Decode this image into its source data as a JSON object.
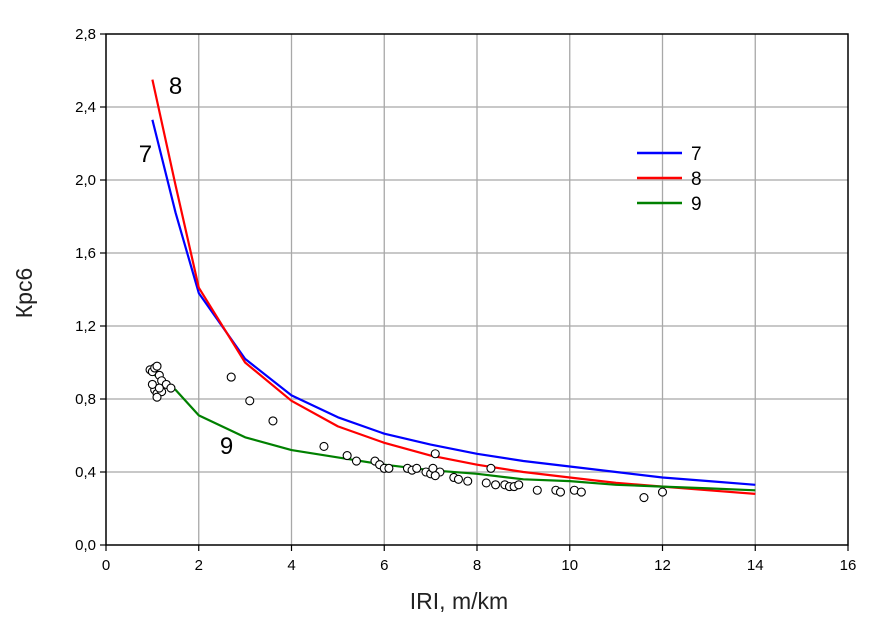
{
  "chart_data": {
    "type": "line",
    "title": "",
    "xlabel": "IRI, m/km",
    "ylabel": "Кpc6",
    "xlim": [
      0,
      16
    ],
    "ylim": [
      0,
      2.8
    ],
    "x_ticks": [
      0,
      2,
      4,
      6,
      8,
      10,
      12,
      14,
      16
    ],
    "x_tick_labels": [
      "0",
      "2",
      "4",
      "6",
      "8",
      "10",
      "12",
      "14",
      "16"
    ],
    "y_ticks": [
      0,
      0.4,
      0.8,
      1.2,
      1.6,
      2.0,
      2.4,
      2.8
    ],
    "y_tick_labels": [
      "0,0",
      "0,4",
      "0,8",
      "1,2",
      "1,6",
      "2,0",
      "2,4",
      "2,8"
    ],
    "grid": true,
    "legend_position": "upper-right",
    "series": [
      {
        "name": "7",
        "color": "#0000ff",
        "x": [
          1,
          1.5,
          2,
          3,
          4,
          5,
          6,
          7,
          8,
          9,
          10,
          11,
          12,
          13,
          14
        ],
        "y": [
          2.33,
          1.82,
          1.38,
          1.02,
          0.82,
          0.7,
          0.61,
          0.55,
          0.5,
          0.46,
          0.43,
          0.4,
          0.37,
          0.35,
          0.33
        ]
      },
      {
        "name": "8",
        "color": "#ff0000",
        "x": [
          1,
          1.5,
          2,
          3,
          4,
          5,
          6,
          7,
          8,
          9,
          10,
          11,
          12,
          13,
          14
        ],
        "y": [
          2.55,
          1.97,
          1.41,
          1.0,
          0.79,
          0.65,
          0.56,
          0.49,
          0.44,
          0.4,
          0.37,
          0.34,
          0.32,
          0.3,
          0.28
        ]
      },
      {
        "name": "9",
        "color": "#008000",
        "x": [
          1,
          1.5,
          2,
          3,
          4,
          5,
          6,
          7,
          8,
          9,
          10,
          11,
          12,
          13,
          14
        ],
        "y": [
          0.94,
          0.85,
          0.71,
          0.59,
          0.52,
          0.48,
          0.44,
          0.41,
          0.39,
          0.36,
          0.35,
          0.33,
          0.32,
          0.31,
          0.3
        ]
      }
    ],
    "scatter": {
      "x": [
        0.95,
        1.0,
        1.05,
        1.1,
        1.15,
        1.2,
        1.05,
        1.1,
        1.3,
        1.0,
        1.2,
        1.4,
        1.1,
        1.15,
        2.7,
        3.1,
        3.6,
        4.7,
        5.2,
        5.4,
        5.8,
        5.9,
        6.0,
        6.1,
        6.5,
        6.6,
        6.7,
        6.9,
        7.0,
        7.05,
        7.1,
        7.2,
        7.1,
        7.5,
        7.6,
        7.8,
        8.2,
        8.3,
        8.4,
        8.6,
        8.7,
        8.8,
        8.9,
        9.3,
        9.7,
        9.8,
        10.1,
        10.25,
        11.6,
        12.0
      ],
      "y": [
        0.96,
        0.95,
        0.97,
        0.98,
        0.93,
        0.9,
        0.85,
        0.83,
        0.88,
        0.88,
        0.84,
        0.86,
        0.81,
        0.86,
        0.92,
        0.79,
        0.68,
        0.54,
        0.49,
        0.46,
        0.46,
        0.44,
        0.42,
        0.42,
        0.42,
        0.41,
        0.42,
        0.4,
        0.39,
        0.42,
        0.5,
        0.4,
        0.38,
        0.37,
        0.36,
        0.35,
        0.34,
        0.42,
        0.33,
        0.33,
        0.32,
        0.32,
        0.33,
        0.3,
        0.3,
        0.29,
        0.3,
        0.29,
        0.26,
        0.29
      ]
    },
    "curve_labels": [
      {
        "text": "8",
        "x": 1.5,
        "y": 2.47
      },
      {
        "text": "7",
        "x": 0.85,
        "y": 2.1
      },
      {
        "text": "9",
        "x": 2.6,
        "y": 0.5
      }
    ]
  }
}
